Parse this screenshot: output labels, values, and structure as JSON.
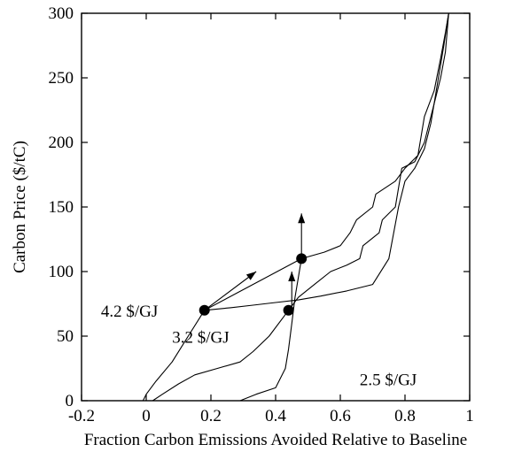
{
  "chart_data": {
    "type": "line",
    "title": "",
    "xlabel": "Fraction Carbon Emissions Avoided Relative to Baseline",
    "ylabel": "Carbon Price ($/tC)",
    "xlim": [
      -0.2,
      1.0
    ],
    "ylim": [
      0,
      300
    ],
    "xticks": [
      -0.2,
      0,
      0.2,
      0.4,
      0.6,
      0.8,
      1
    ],
    "yticks": [
      0,
      50,
      100,
      150,
      200,
      250,
      300
    ],
    "xtick_labels": [
      "-0.2",
      "0",
      "0.2",
      "0.4",
      "0.6",
      "0.8",
      "1"
    ],
    "ytick_labels": [
      "0",
      "50",
      "100",
      "150",
      "200",
      "250",
      "300"
    ],
    "grid": false,
    "legend": "none",
    "series": [
      {
        "label_text": "4.2 $/GJ",
        "points": [
          [
            -0.01,
            0
          ],
          [
            0,
            5
          ],
          [
            0.03,
            15
          ],
          [
            0.08,
            30
          ],
          [
            0.13,
            50
          ],
          [
            0.18,
            70
          ],
          [
            0.26,
            72
          ],
          [
            0.33,
            74
          ],
          [
            0.4,
            76
          ],
          [
            0.47,
            78
          ],
          [
            0.54,
            81
          ],
          [
            0.62,
            85
          ],
          [
            0.7,
            90
          ],
          [
            0.75,
            110
          ],
          [
            0.78,
            150
          ],
          [
            0.8,
            170
          ],
          [
            0.83,
            180
          ],
          [
            0.86,
            195
          ],
          [
            0.88,
            215
          ],
          [
            0.9,
            245
          ],
          [
            0.92,
            275
          ],
          [
            0.935,
            300
          ]
        ]
      },
      {
        "label_text": "3.2 $/GJ",
        "points": [
          [
            0.02,
            0
          ],
          [
            0.05,
            5
          ],
          [
            0.1,
            13
          ],
          [
            0.15,
            20
          ],
          [
            0.22,
            25
          ],
          [
            0.29,
            30
          ],
          [
            0.33,
            38
          ],
          [
            0.38,
            50
          ],
          [
            0.44,
            70
          ],
          [
            0.47,
            80
          ],
          [
            0.52,
            90
          ],
          [
            0.57,
            100
          ],
          [
            0.62,
            105
          ],
          [
            0.66,
            110
          ],
          [
            0.67,
            120
          ],
          [
            0.72,
            130
          ],
          [
            0.73,
            140
          ],
          [
            0.77,
            150
          ],
          [
            0.79,
            180
          ],
          [
            0.83,
            185
          ],
          [
            0.86,
            200
          ],
          [
            0.89,
            230
          ],
          [
            0.91,
            250
          ],
          [
            0.925,
            270
          ],
          [
            0.935,
            300
          ]
        ]
      },
      {
        "label_text": "2.5 $/GJ",
        "points": [
          [
            0.29,
            0
          ],
          [
            0.34,
            5
          ],
          [
            0.4,
            10
          ],
          [
            0.43,
            25
          ],
          [
            0.44,
            40
          ],
          [
            0.45,
            60
          ],
          [
            0.46,
            80
          ],
          [
            0.48,
            110
          ],
          [
            0.55,
            115
          ],
          [
            0.6,
            120
          ],
          [
            0.63,
            130
          ],
          [
            0.65,
            140
          ],
          [
            0.7,
            150
          ],
          [
            0.71,
            160
          ],
          [
            0.77,
            170
          ],
          [
            0.8,
            180
          ],
          [
            0.84,
            190
          ],
          [
            0.86,
            220
          ],
          [
            0.89,
            240
          ],
          [
            0.91,
            265
          ],
          [
            0.925,
            285
          ],
          [
            0.935,
            300
          ]
        ]
      }
    ],
    "connector_points": [
      [
        0.18,
        70
      ],
      [
        0.48,
        110
      ]
    ],
    "markers": [
      {
        "x": 0.18,
        "y": 70
      },
      {
        "x": 0.44,
        "y": 70
      },
      {
        "x": 0.48,
        "y": 110
      }
    ],
    "arrows": [
      {
        "from": [
          0.18,
          70
        ],
        "to": [
          0.34,
          100
        ]
      },
      {
        "from": [
          0.45,
          70
        ],
        "to": [
          0.45,
          100
        ]
      },
      {
        "from": [
          0.48,
          110
        ],
        "to": [
          0.48,
          145
        ]
      }
    ],
    "annotations": [
      {
        "text": "4.2 $/GJ",
        "x": -0.14,
        "y": 65
      },
      {
        "text": "3.2 $/GJ",
        "x": 0.08,
        "y": 45
      },
      {
        "text": "2.5 $/GJ",
        "x": 0.66,
        "y": 12
      }
    ]
  }
}
